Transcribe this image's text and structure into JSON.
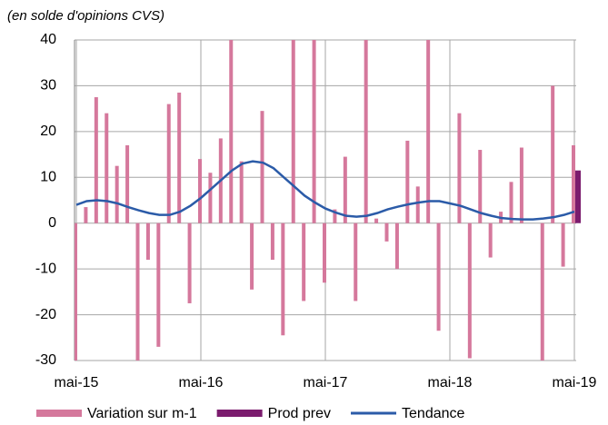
{
  "chart_data": {
    "type": "bar",
    "subtitle": "(en solde d'opinions CVS)",
    "categories": [
      "mai-15",
      null,
      null,
      null,
      null,
      null,
      null,
      null,
      null,
      null,
      null,
      null,
      "mai-16",
      null,
      null,
      null,
      null,
      null,
      null,
      null,
      null,
      null,
      null,
      null,
      "mai-17",
      null,
      null,
      null,
      null,
      null,
      null,
      null,
      null,
      null,
      null,
      null,
      "mai-18",
      null,
      null,
      null,
      null,
      null,
      null,
      null,
      null,
      null,
      null,
      null,
      "mai-19"
    ],
    "series": [
      {
        "name": "Variation sur m-1",
        "color": "#d5789c",
        "kind": "bar",
        "values": [
          -30,
          3.5,
          27.5,
          24,
          12.5,
          17,
          -30,
          -8,
          -27,
          26,
          28.5,
          -17.5,
          14,
          11,
          18.5,
          40,
          13.5,
          -14.5,
          24.5,
          -8,
          -24.5,
          40,
          -17,
          40,
          -13,
          3,
          14.5,
          -17,
          40,
          1,
          -4,
          -10,
          18,
          8,
          40,
          -23.5,
          0,
          24,
          -29.5,
          16,
          -7.5,
          2.5,
          9,
          16.5,
          0,
          -30,
          30,
          -9.5,
          17
        ]
      },
      {
        "name": "Prod prev",
        "color": "#7b1c6e",
        "kind": "bar",
        "values": [
          null,
          null,
          null,
          null,
          null,
          null,
          null,
          null,
          null,
          null,
          null,
          null,
          null,
          null,
          null,
          null,
          null,
          null,
          null,
          null,
          null,
          null,
          null,
          null,
          null,
          null,
          null,
          null,
          null,
          null,
          null,
          null,
          null,
          null,
          null,
          null,
          null,
          null,
          null,
          null,
          null,
          null,
          null,
          null,
          null,
          null,
          null,
          null,
          11.5
        ]
      },
      {
        "name": "Tendance",
        "color": "#2b5ba8",
        "kind": "line",
        "values": [
          4,
          4.8,
          5,
          4.8,
          4.3,
          3.5,
          2.8,
          2.2,
          1.8,
          1.8,
          2.5,
          3.8,
          5.5,
          7.5,
          9.5,
          11.5,
          13,
          13.5,
          13.2,
          12,
          10,
          8,
          6,
          4.5,
          3.2,
          2.3,
          1.6,
          1.4,
          1.6,
          2.2,
          3,
          3.6,
          4.1,
          4.5,
          4.8,
          4.8,
          4.3,
          3.8,
          3,
          2.2,
          1.6,
          1.1,
          0.9,
          0.8,
          0.8,
          1,
          1.3,
          1.8,
          2.5
        ]
      }
    ],
    "ylim": [
      -30,
      40
    ],
    "yticks": [
      -30,
      -20,
      -10,
      0,
      10,
      20,
      30,
      40
    ],
    "grid": true
  }
}
